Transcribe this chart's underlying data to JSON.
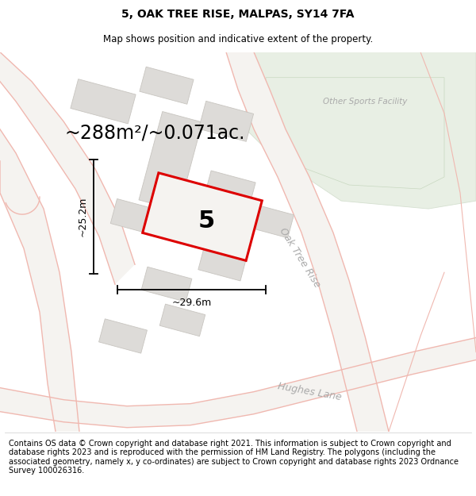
{
  "title": "5, OAK TREE RISE, MALPAS, SY14 7FA",
  "subtitle": "Map shows position and indicative extent of the property.",
  "footer": "Contains OS data © Crown copyright and database right 2021. This information is subject to Crown copyright and database rights 2023 and is reproduced with the permission of HM Land Registry. The polygons (including the associated geometry, namely x, y co-ordinates) are subject to Crown copyright and database rights 2023 Ordnance Survey 100026316.",
  "area_text": "~288m²/~0.071ac.",
  "plot_number": "5",
  "dim_width": "~29.6m",
  "dim_height": "~25.2m",
  "map_bg": "#f5f3f0",
  "building_facecolor": "#dddbd8",
  "building_edgecolor": "#c8c5c0",
  "green_facecolor": "#e8efe4",
  "green_edgecolor": "#d5e0d0",
  "road_outline_color": "#f0b8b0",
  "plot_outline_color": "#dd0000",
  "plot_fill_color": "#f5f3f0",
  "road_label_color": "#aaaaaa",
  "sports_label_color": "#aaaaaa",
  "title_fontsize": 10,
  "subtitle_fontsize": 8.5,
  "footer_fontsize": 7.0,
  "area_fontsize": 17,
  "dim_fontsize": 9,
  "plot_label_fontsize": 22
}
